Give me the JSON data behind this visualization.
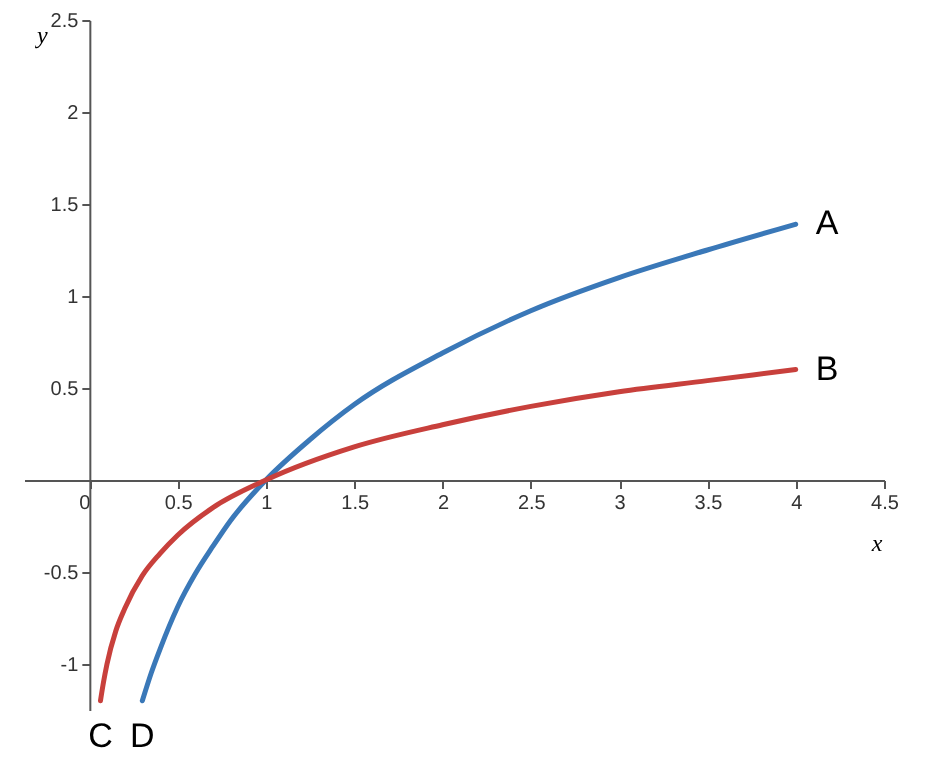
{
  "chart_data": {
    "type": "line",
    "xlabel": "x",
    "ylabel": "y",
    "xlim": [
      -0.37,
      4.5
    ],
    "ylim": [
      -1.25,
      2.5
    ],
    "xticks": [
      0,
      0.5,
      1,
      1.5,
      2,
      2.5,
      3,
      3.5,
      4,
      4.5
    ],
    "yticks": [
      -1,
      -0.5,
      0.5,
      1,
      1.5,
      2,
      2.5
    ],
    "grid": false,
    "marker": "none",
    "line_style": "solid",
    "series": [
      {
        "color": "#3a78b8",
        "x": [
          0.3,
          0.35,
          0.4,
          0.5,
          0.6,
          0.7,
          0.8,
          1,
          1.25,
          1.5,
          2,
          2.5,
          3,
          3.5,
          4
        ],
        "values": [
          -1.2,
          -1.05,
          -0.92,
          -0.69,
          -0.51,
          -0.36,
          -0.22,
          0,
          0.22,
          0.41,
          0.69,
          0.92,
          1.1,
          1.25,
          1.39
        ]
      },
      {
        "color": "#c8403c",
        "x": [
          0.063,
          0.08,
          0.1,
          0.15,
          0.2,
          0.3,
          0.4,
          0.5,
          0.7,
          1,
          1.5,
          2,
          2.5,
          3,
          3.5,
          4
        ],
        "values": [
          -1.2,
          -1.1,
          -1,
          -0.82,
          -0.7,
          -0.52,
          -0.4,
          -0.3,
          -0.15,
          0,
          0.18,
          0.3,
          0.4,
          0.48,
          0.54,
          0.6
        ]
      }
    ],
    "annotations": [
      {
        "text": "A",
        "x": 4,
        "y": 1.39
      },
      {
        "text": "B",
        "x": 4,
        "y": 0.6
      },
      {
        "text": "C",
        "x": 0.063,
        "y": -1.2
      },
      {
        "text": "D",
        "x": 0.3,
        "y": -1.2
      }
    ]
  }
}
